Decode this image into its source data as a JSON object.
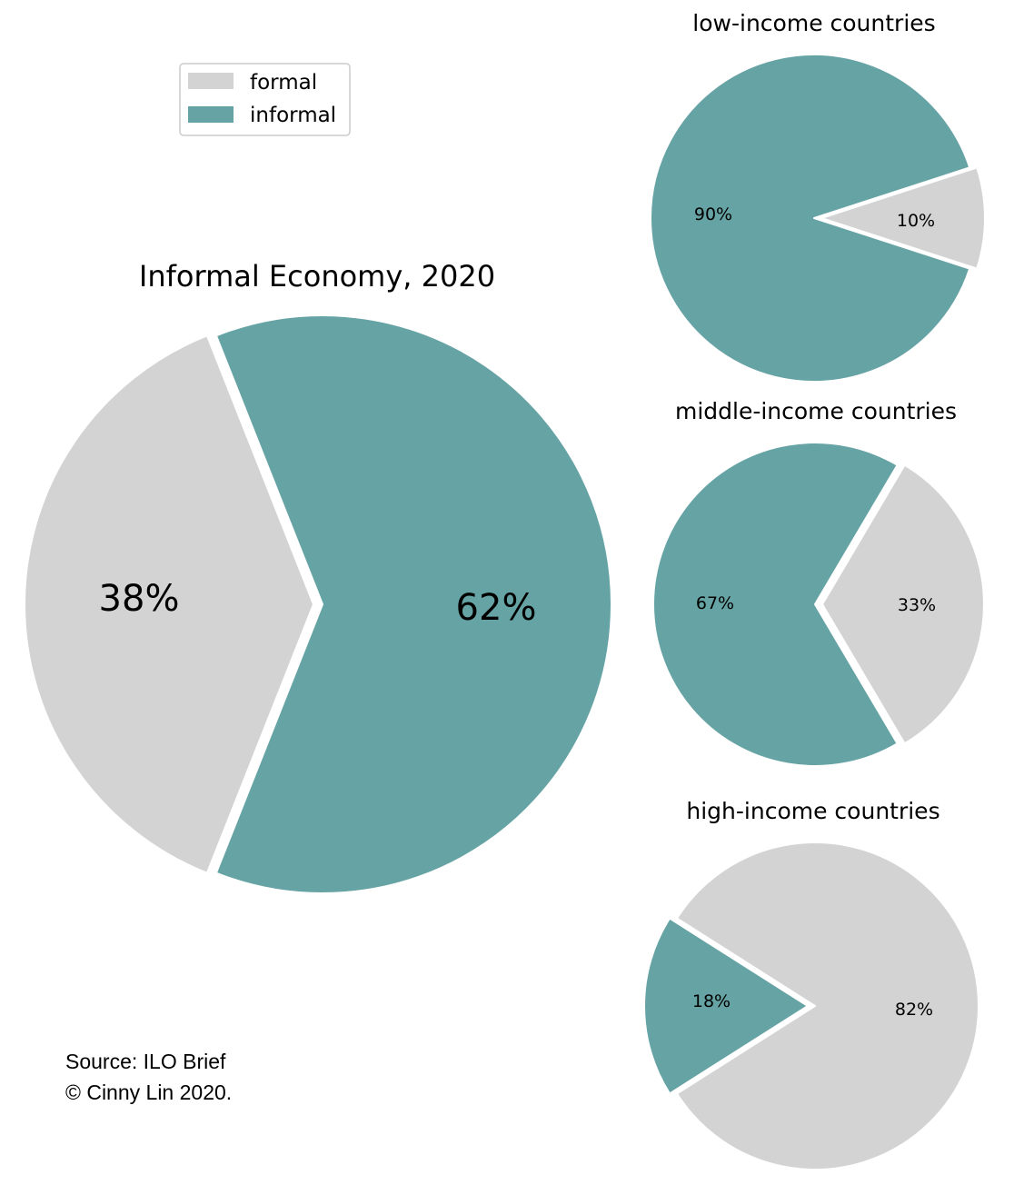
{
  "colors": {
    "formal": "#d3d3d3",
    "informal": "#66a3a4",
    "background": "#ffffff"
  },
  "legend": {
    "items": [
      {
        "label": "formal",
        "color": "#d3d3d3"
      },
      {
        "label": "informal",
        "color": "#66a3a4"
      }
    ]
  },
  "source": {
    "line1": "Source: ILO Brief",
    "line2": "© Cinny Lin 2020."
  },
  "chart_data": [
    {
      "type": "pie",
      "title": "Informal Economy, 2020",
      "slices": [
        {
          "name": "formal",
          "value": 38,
          "label": "38%",
          "color": "#d3d3d3"
        },
        {
          "name": "informal",
          "value": 62,
          "label": "62%",
          "color": "#66a3a4"
        }
      ],
      "exploded": "formal"
    },
    {
      "type": "pie",
      "title": "low-income countries",
      "slices": [
        {
          "name": "formal",
          "value": 10,
          "label": "10%",
          "color": "#d3d3d3"
        },
        {
          "name": "informal",
          "value": 90,
          "label": "90%",
          "color": "#66a3a4"
        }
      ],
      "exploded": "formal"
    },
    {
      "type": "pie",
      "title": "middle-income countries",
      "slices": [
        {
          "name": "formal",
          "value": 33,
          "label": "33%",
          "color": "#d3d3d3"
        },
        {
          "name": "informal",
          "value": 67,
          "label": "67%",
          "color": "#66a3a4"
        }
      ],
      "exploded": "formal"
    },
    {
      "type": "pie",
      "title": "high-income countries",
      "slices": [
        {
          "name": "formal",
          "value": 82,
          "label": "82%",
          "color": "#d3d3d3"
        },
        {
          "name": "informal",
          "value": 18,
          "label": "18%",
          "color": "#66a3a4"
        }
      ],
      "exploded": "informal"
    }
  ]
}
